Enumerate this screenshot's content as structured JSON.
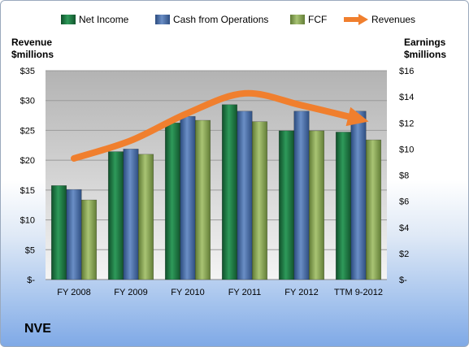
{
  "company": "NVE",
  "chart_data": {
    "type": "bar",
    "categories": [
      "FY 2008",
      "FY 2009",
      "FY 2010",
      "FY 2011",
      "FY 2012",
      "TTM 9-2012"
    ],
    "series": [
      {
        "name": "Net Income",
        "axis": "right",
        "values": [
          7.2,
          9.8,
          12.0,
          13.4,
          11.4,
          11.3
        ],
        "color": "#1f7a44"
      },
      {
        "name": "Cash from Operations",
        "axis": "right",
        "values": [
          6.9,
          10.0,
          12.5,
          12.9,
          12.9,
          12.9
        ],
        "color": "#4a6fa5"
      },
      {
        "name": "FCF",
        "axis": "right",
        "values": [
          6.1,
          9.6,
          12.2,
          12.1,
          11.4,
          10.7
        ],
        "color": "#8fac5a"
      },
      {
        "name": "Revenues",
        "axis": "left",
        "type": "line",
        "values": [
          20.3,
          23.3,
          27.9,
          31.2,
          29.2,
          26.9
        ],
        "color": "#f07f2e"
      }
    ],
    "yleft": {
      "label_line1": "Revenue",
      "label_line2": "$millions",
      "min": 0,
      "max": 35,
      "step": 5,
      "ticks": [
        "$-",
        "$5",
        "$10",
        "$15",
        "$20",
        "$25",
        "$30",
        "$35"
      ]
    },
    "yright": {
      "label_line1": "Earnings",
      "label_line2": "$millions",
      "min": 0,
      "max": 16,
      "step": 2,
      "ticks": [
        "$-",
        "$2",
        "$4",
        "$6",
        "$8",
        "$10",
        "$12",
        "$14",
        "$16"
      ]
    },
    "grid": true,
    "legend": "top"
  }
}
